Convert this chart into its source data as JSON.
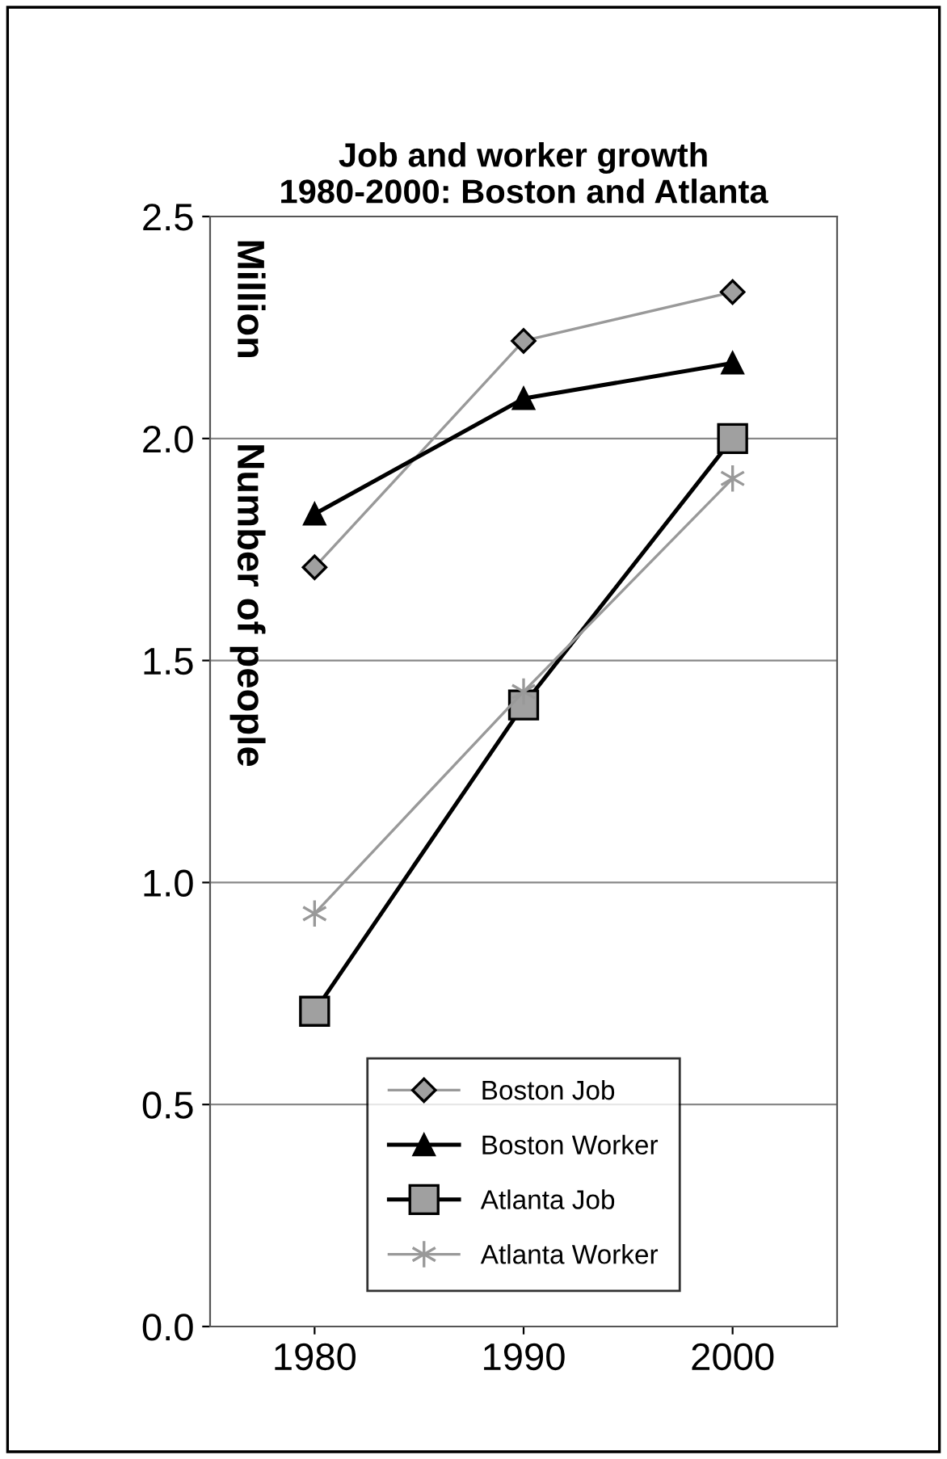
{
  "chart_data": {
    "type": "line",
    "title": "Job and worker growth\n1980-2000: Boston and Atlanta",
    "ylabel": "Number of people",
    "annotations": [
      "Million"
    ],
    "categories": [
      "1980",
      "1990",
      "2000"
    ],
    "series": [
      {
        "name": "Boston Job",
        "color": "#999999",
        "marker": "diamond",
        "values": [
          1.71,
          2.22,
          2.33
        ]
      },
      {
        "name": "Boston Worker",
        "color": "#000000",
        "marker": "triangle",
        "values": [
          1.83,
          2.09,
          2.17
        ]
      },
      {
        "name": "Atlanta Job",
        "color": "#000000",
        "marker": "square",
        "values": [
          0.71,
          1.4,
          2.0
        ]
      },
      {
        "name": "Atlanta Worker",
        "color": "#999999",
        "marker": "cross",
        "values": [
          0.93,
          1.43,
          1.91
        ]
      }
    ],
    "ylim": [
      0,
      2.5
    ],
    "yticks": [
      {
        "value": 0,
        "label": "0.0"
      },
      {
        "value": 0.5,
        "label": "0.5"
      },
      {
        "value": 1,
        "label": "1.0"
      },
      {
        "value": 1.5,
        "label": "1.5"
      },
      {
        "value": 2,
        "label": "2.0"
      },
      {
        "value": 2.5,
        "label": "2.5"
      }
    ],
    "grid": "y",
    "legend": "bottom"
  }
}
